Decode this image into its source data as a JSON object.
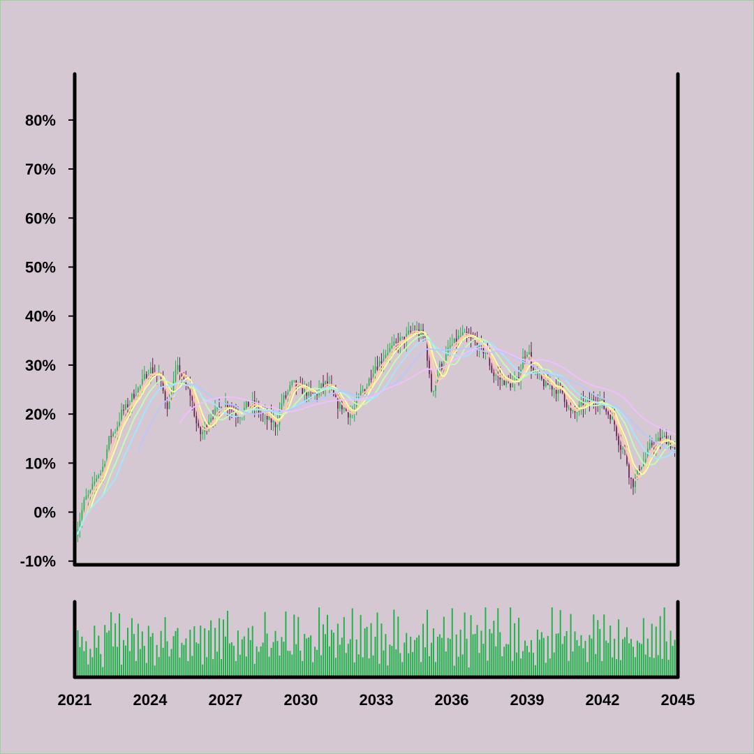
{
  "chart_data": {
    "type": "candlestick",
    "title": "",
    "xlabel": "",
    "ylabel": "",
    "x_ticks": [
      "2021",
      "2024",
      "2027",
      "2030",
      "2033",
      "2036",
      "2039",
      "2042",
      "2045"
    ],
    "y_ticks": [
      "-10%",
      "0%",
      "10%",
      "20%",
      "30%",
      "40%",
      "50%",
      "60%",
      "70%",
      "80%"
    ],
    "x_range": [
      2021,
      2045
    ],
    "y_range": [
      -10,
      90
    ],
    "grid": false,
    "legend": "none",
    "colors": {
      "background": "#d5c8d2",
      "up": "#22b24c",
      "down": "#5e1a4b",
      "volume": "#22b24c",
      "axis": "#000000",
      "ma": [
        "#ffc0c0",
        "#ffd8a0",
        "#ffffa0",
        "#c0ffb0",
        "#a0e8ff",
        "#b8c8ff",
        "#f0c0ff"
      ]
    },
    "price_keypoints": [
      [
        2021.0,
        -4
      ],
      [
        2021.5,
        3
      ],
      [
        2022.0,
        8
      ],
      [
        2022.5,
        16
      ],
      [
        2023.0,
        21
      ],
      [
        2023.5,
        25
      ],
      [
        2024.0,
        29
      ],
      [
        2024.3,
        28
      ],
      [
        2024.7,
        22
      ],
      [
        2025.1,
        29
      ],
      [
        2025.5,
        25
      ],
      [
        2026.0,
        16
      ],
      [
        2026.5,
        20
      ],
      [
        2027.0,
        22
      ],
      [
        2027.5,
        20
      ],
      [
        2028.0,
        22
      ],
      [
        2028.7,
        19
      ],
      [
        2029.0,
        18
      ],
      [
        2029.3,
        23
      ],
      [
        2029.7,
        26
      ],
      [
        2030.0,
        25
      ],
      [
        2030.5,
        24
      ],
      [
        2031.0,
        26
      ],
      [
        2031.5,
        22
      ],
      [
        2032.0,
        20
      ],
      [
        2032.5,
        25
      ],
      [
        2033.0,
        30
      ],
      [
        2033.5,
        33
      ],
      [
        2034.0,
        35
      ],
      [
        2034.5,
        37
      ],
      [
        2034.9,
        36
      ],
      [
        2035.2,
        25
      ],
      [
        2035.6,
        30
      ],
      [
        2036.0,
        34
      ],
      [
        2036.4,
        36
      ],
      [
        2036.8,
        35
      ],
      [
        2037.3,
        33
      ],
      [
        2037.7,
        28
      ],
      [
        2038.0,
        27
      ],
      [
        2038.5,
        26
      ],
      [
        2039.0,
        33
      ],
      [
        2039.3,
        28
      ],
      [
        2039.8,
        26
      ],
      [
        2040.3,
        25
      ],
      [
        2040.8,
        20
      ],
      [
        2041.3,
        22
      ],
      [
        2041.8,
        23
      ],
      [
        2042.3,
        20
      ],
      [
        2042.8,
        13
      ],
      [
        2043.2,
        6
      ],
      [
        2043.6,
        10
      ],
      [
        2044.0,
        14
      ],
      [
        2044.5,
        15
      ],
      [
        2045.0,
        12
      ]
    ],
    "moving_average_windows": [
      4,
      6,
      8,
      14,
      20,
      30,
      50
    ],
    "volume_levels": [
      0.55,
      0.8,
      0.35,
      0.7,
      0.45,
      0.9,
      0.3,
      0.65,
      0.5,
      0.75,
      0.4,
      0.85,
      0.6,
      0.25,
      0.7,
      0.5
    ],
    "volume_ylim": [
      0,
      1
    ]
  }
}
